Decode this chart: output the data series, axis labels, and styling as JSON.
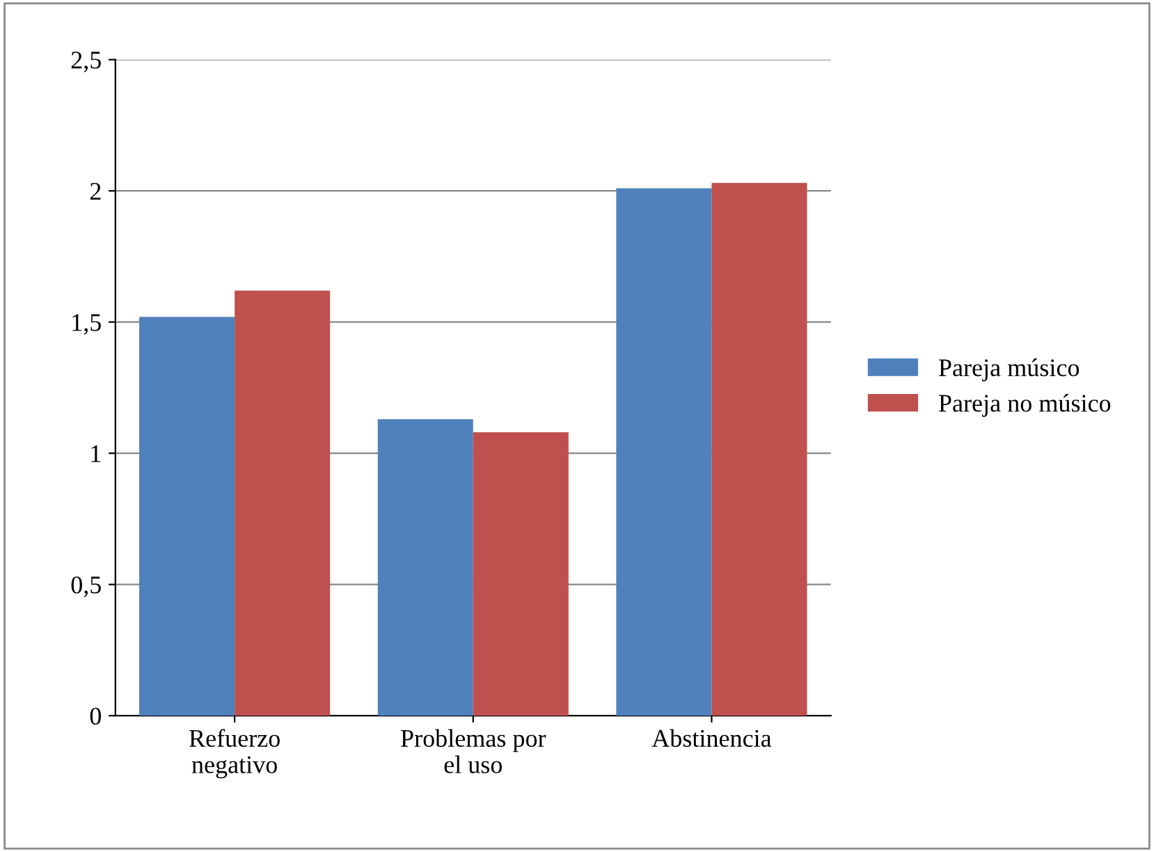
{
  "chart_data": {
    "type": "bar",
    "categories": [
      "Refuerzo\nnegativo",
      "Problemas por\nel uso",
      "Abstinencia"
    ],
    "series": [
      {
        "name": "Pareja músico",
        "color": "#4f81bd",
        "values": [
          1.52,
          1.13,
          2.01
        ]
      },
      {
        "name": "Pareja no músico",
        "color": "#c0504d",
        "values": [
          1.62,
          1.08,
          2.03
        ]
      }
    ],
    "ylim": [
      0,
      2.5
    ],
    "yticks": [
      0,
      {
        "value": 0.5,
        "label": "0,5"
      },
      1,
      {
        "value": 1.5,
        "label": "1,5"
      },
      2,
      {
        "value": 2.5,
        "label": "2,5"
      }
    ],
    "grid": "y",
    "legend": "right"
  }
}
